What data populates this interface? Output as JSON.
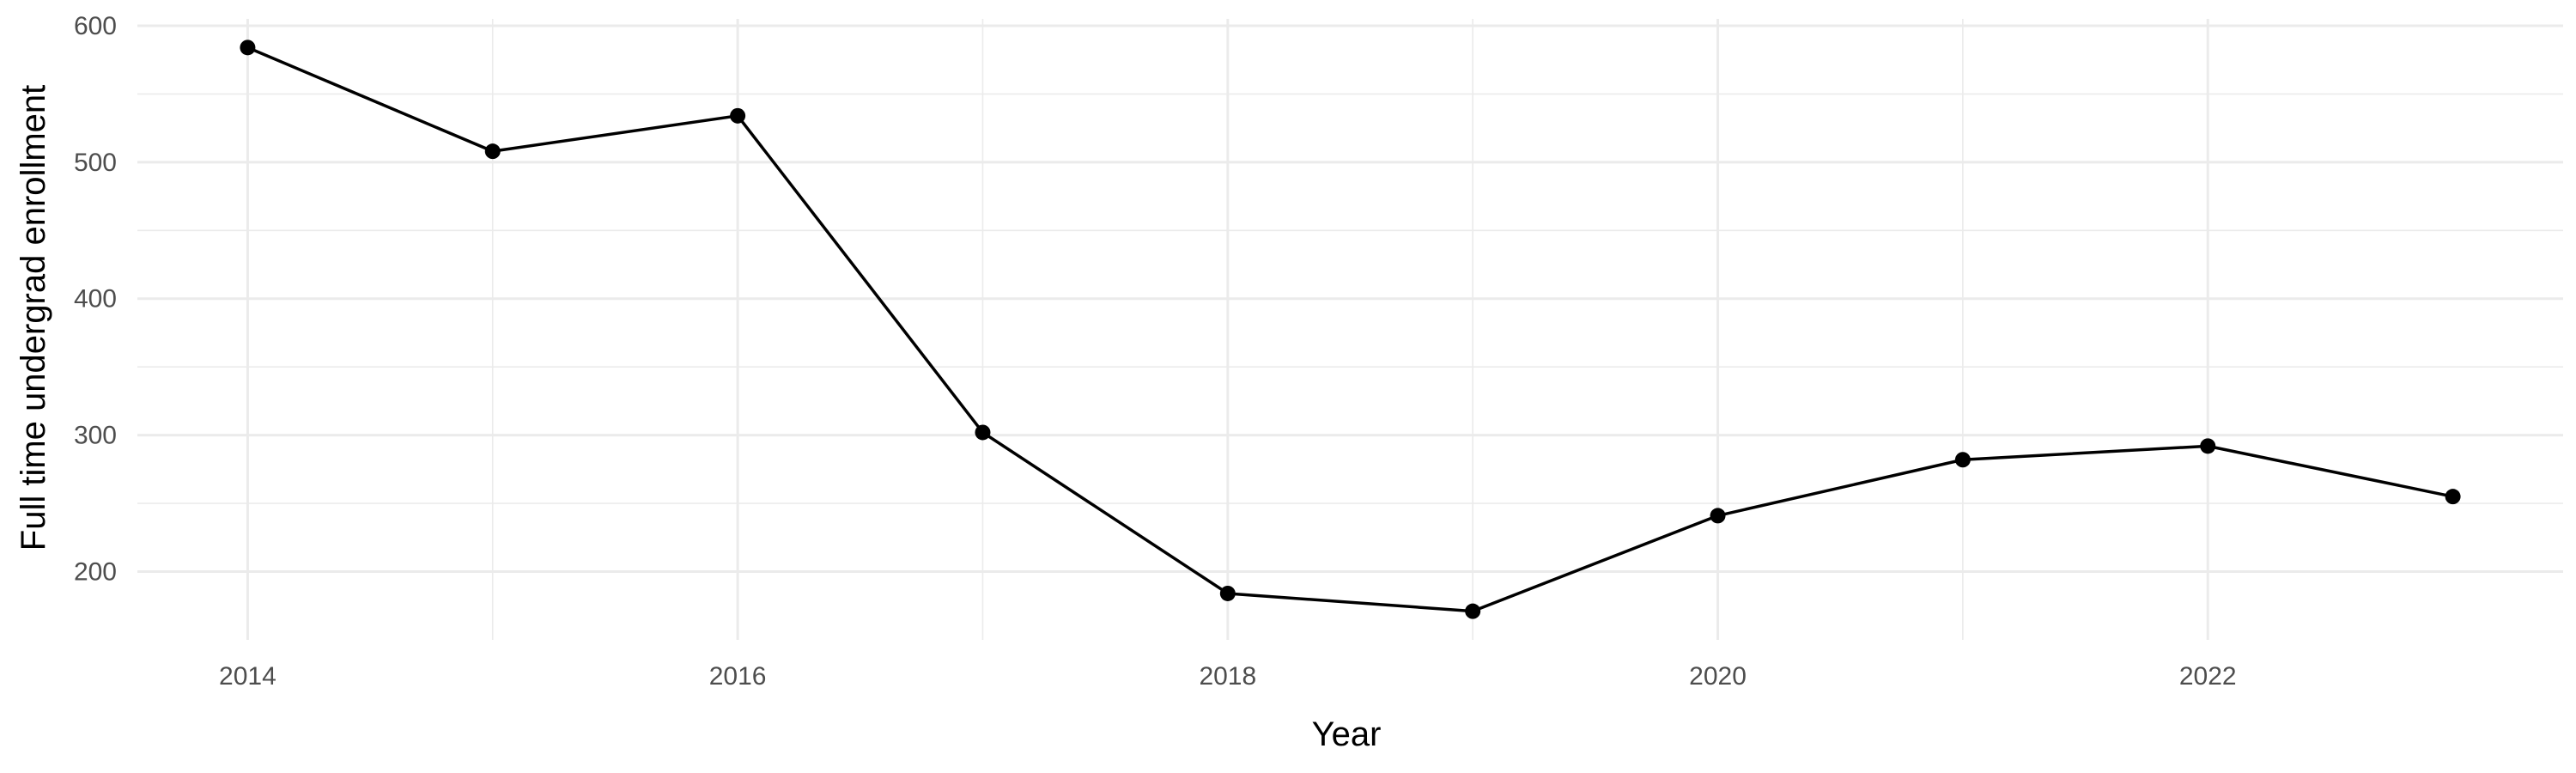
{
  "chart_data": {
    "type": "line",
    "title": "",
    "xlabel": "Year",
    "ylabel": "Full time undergrad enrollment",
    "x": [
      2014,
      2015,
      2016,
      2017,
      2018,
      2019,
      2020,
      2021,
      2022,
      2023
    ],
    "series": [
      {
        "values": [
          584,
          508,
          534,
          302,
          184,
          171,
          241,
          282,
          292,
          255
        ]
      }
    ],
    "x_ticks": [
      2014,
      2016,
      2018,
      2020,
      2022
    ],
    "x_tick_labels": [
      "2014",
      "2016",
      "2018",
      "2020",
      "2022"
    ],
    "y_ticks": [
      200,
      300,
      400,
      500,
      600
    ],
    "y_tick_labels": [
      "200",
      "300",
      "400",
      "500",
      "600"
    ],
    "xlim": [
      2013.55,
      2023.45
    ],
    "ylim": [
      150,
      605
    ],
    "grid": true,
    "legend": "none",
    "colors": {
      "line": "#000000",
      "point": "#000000",
      "grid": "#ebebeb",
      "tick_text": "#4d4d4d"
    }
  }
}
